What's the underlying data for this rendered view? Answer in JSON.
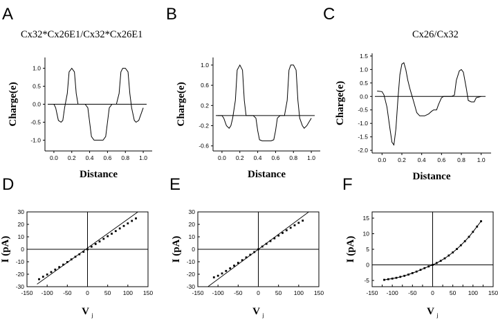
{
  "chart_data": [
    {
      "id": "A",
      "type": "line",
      "panel_letter": "A",
      "title": "Cx32*Cx26E1/Cx32*Cx26E1",
      "xlabel": "Distance",
      "ylabel": "Charge(e)",
      "xlim": [
        -0.1,
        1.1
      ],
      "ylim": [
        -1.3,
        1.3
      ],
      "xticks": [
        "0.0",
        "0.2",
        "0.4",
        "0.6",
        "0.8",
        "1.0"
      ],
      "yticks": [
        "-1.0",
        "-0.5",
        "0.0",
        "0.5",
        "1.0"
      ],
      "zero_line": true,
      "series": [
        {
          "x": [
            -0.05,
            0.0,
            0.02,
            0.05,
            0.08,
            0.1,
            0.12,
            0.15,
            0.17,
            0.2,
            0.23,
            0.25,
            0.27,
            0.3,
            0.32,
            0.35,
            0.38,
            0.4,
            0.42,
            0.45,
            0.5,
            0.55,
            0.58,
            0.6,
            0.62,
            0.65,
            0.68,
            0.7,
            0.73,
            0.75,
            0.77,
            0.8,
            0.83,
            0.85,
            0.87,
            0.9,
            0.92,
            0.95,
            1.0
          ],
          "y": [
            0,
            0,
            -0.1,
            -0.45,
            -0.5,
            -0.45,
            -0.1,
            0.3,
            0.9,
            1.0,
            0.9,
            0.3,
            0,
            0,
            0,
            0,
            -0.1,
            -0.5,
            -0.9,
            -1.0,
            -1.0,
            -1.0,
            -0.9,
            -0.5,
            -0.1,
            0,
            0,
            0,
            0.3,
            0.9,
            1.0,
            1.0,
            0.9,
            0.3,
            -0.1,
            -0.45,
            -0.5,
            -0.45,
            -0.1
          ]
        }
      ]
    },
    {
      "id": "B",
      "type": "line",
      "panel_letter": "B",
      "title": "",
      "xlabel": "Distance",
      "ylabel": "Charge(e)",
      "xlim": [
        -0.1,
        1.1
      ],
      "ylim": [
        -0.7,
        1.15
      ],
      "xticks": [
        "0.0",
        "0.2",
        "0.4",
        "0.6",
        "0.8",
        "1.0"
      ],
      "yticks": [
        "-0.6",
        "-0.2",
        "0.2",
        "0.6",
        "1.0"
      ],
      "zero_line": true,
      "series": [
        {
          "x": [
            -0.05,
            0.0,
            0.02,
            0.05,
            0.08,
            0.1,
            0.12,
            0.15,
            0.17,
            0.2,
            0.23,
            0.25,
            0.27,
            0.3,
            0.32,
            0.35,
            0.38,
            0.4,
            0.42,
            0.45,
            0.5,
            0.55,
            0.58,
            0.6,
            0.62,
            0.65,
            0.68,
            0.7,
            0.73,
            0.75,
            0.77,
            0.8,
            0.83,
            0.85,
            0.87,
            0.9,
            0.92,
            0.95,
            1.0
          ],
          "y": [
            0,
            0,
            -0.05,
            -0.2,
            -0.25,
            -0.2,
            -0.05,
            0.3,
            0.9,
            1.0,
            0.9,
            0.3,
            0,
            0,
            0,
            0,
            -0.05,
            -0.3,
            -0.48,
            -0.5,
            -0.5,
            -0.5,
            -0.48,
            -0.3,
            -0.05,
            0,
            0,
            0,
            0.3,
            0.9,
            1.0,
            1.0,
            0.9,
            0.3,
            -0.05,
            -0.2,
            -0.25,
            -0.2,
            -0.05
          ]
        }
      ]
    },
    {
      "id": "C",
      "type": "line",
      "panel_letter": "C",
      "title": "Cx26/Cx32",
      "xlabel": "Distance",
      "ylabel": "Charge(e)",
      "xlim": [
        -0.1,
        1.1
      ],
      "ylim": [
        -2.1,
        1.6
      ],
      "xticks": [
        "0.0",
        "0.2",
        "0.4",
        "0.6",
        "0.8",
        "1.0"
      ],
      "yticks": [
        "-2.0",
        "-1.5",
        "-1.0",
        "-0.5",
        "0.0",
        "0.5",
        "1.0",
        "1.5"
      ],
      "zero_line": true,
      "series": [
        {
          "x": [
            -0.05,
            0.0,
            0.02,
            0.05,
            0.08,
            0.1,
            0.12,
            0.14,
            0.16,
            0.18,
            0.2,
            0.22,
            0.24,
            0.26,
            0.28,
            0.3,
            0.32,
            0.35,
            0.38,
            0.4,
            0.43,
            0.47,
            0.5,
            0.52,
            0.55,
            0.57,
            0.6,
            0.62,
            0.65,
            0.7,
            0.73,
            0.75,
            0.78,
            0.8,
            0.82,
            0.85,
            0.87,
            0.9,
            0.93,
            0.95,
            0.98,
            1.0
          ],
          "y": [
            0.2,
            0.18,
            0.05,
            -0.4,
            -1.2,
            -1.7,
            -1.8,
            -1.2,
            -0.1,
            0.8,
            1.2,
            1.25,
            1.0,
            0.6,
            0.3,
            0.05,
            -0.2,
            -0.6,
            -0.72,
            -0.72,
            -0.72,
            -0.65,
            -0.55,
            -0.5,
            -0.5,
            -0.3,
            -0.05,
            0,
            0,
            0,
            0.05,
            0.6,
            0.95,
            1.0,
            0.9,
            0.3,
            -0.15,
            -0.2,
            -0.2,
            -0.05,
            -0.02,
            0
          ]
        }
      ]
    },
    {
      "id": "D",
      "type": "scatter",
      "panel_letter": "D",
      "xlabel": "V",
      "xlabel_sub": "j",
      "ylabel": "I (pA)",
      "xlim": [
        -150,
        150
      ],
      "ylim": [
        -30,
        30
      ],
      "xticks": [
        "-150",
        "-100",
        "-50",
        "0",
        "50",
        "100",
        "150"
      ],
      "yticks": [
        "-30",
        "-20",
        "-10",
        "0",
        "10",
        "20",
        "30"
      ],
      "zero_line": true,
      "points": {
        "x": [
          -120,
          -110,
          -100,
          -90,
          -80,
          -70,
          -60,
          -50,
          -40,
          -30,
          -20,
          -10,
          0,
          10,
          20,
          30,
          40,
          50,
          60,
          70,
          80,
          90,
          100,
          110,
          120
        ],
        "y": [
          -24,
          -22,
          -20.2,
          -18.3,
          -16.3,
          -14.3,
          -12.3,
          -10.2,
          -8.1,
          -6.0,
          -4.0,
          -2.0,
          0,
          2.1,
          4.2,
          6.3,
          8.4,
          10.5,
          12.5,
          14.6,
          16.7,
          18.7,
          20.8,
          22.8,
          24.8
        ]
      },
      "fit_line": {
        "x": [
          -125,
          125
        ],
        "y": [
          -28,
          30
        ]
      }
    },
    {
      "id": "E",
      "type": "scatter",
      "panel_letter": "E",
      "xlabel": "V",
      "xlabel_sub": "j",
      "ylabel": "I (pA)",
      "xlim": [
        -150,
        150
      ],
      "ylim": [
        -30,
        30
      ],
      "xticks": [
        "-150",
        "-100",
        "-50",
        "0",
        "50",
        "100",
        "150"
      ],
      "yticks": [
        "-30",
        "-20",
        "-10",
        "0",
        "10",
        "20",
        "30"
      ],
      "zero_line": true,
      "points": {
        "x": [
          -110,
          -100,
          -90,
          -80,
          -70,
          -60,
          -50,
          -40,
          -30,
          -20,
          -10,
          0,
          10,
          20,
          30,
          40,
          50,
          60,
          70,
          80,
          90,
          100,
          110
        ],
        "y": [
          -22.5,
          -21.2,
          -19.4,
          -17.4,
          -15.3,
          -13.1,
          -10.9,
          -8.7,
          -6.5,
          -4.4,
          -2.2,
          0,
          2.2,
          4.4,
          6.6,
          8.8,
          11.0,
          13.1,
          15.2,
          17.3,
          19.3,
          21.2,
          23.0
        ]
      },
      "fit_line": {
        "x": [
          -125,
          125
        ],
        "y": [
          -30,
          30
        ]
      }
    },
    {
      "id": "F",
      "type": "scatter",
      "panel_letter": "F",
      "xlabel": "V",
      "xlabel_sub": "j",
      "ylabel": "I (pA)",
      "xlim": [
        -150,
        150
      ],
      "ylim": [
        -7,
        17
      ],
      "xticks": [
        "-150",
        "-125",
        "-100",
        "-75",
        "-50",
        "-25",
        "0",
        "25",
        "50",
        "75",
        "100",
        "125",
        "150"
      ],
      "yticks": [
        "-5",
        "0",
        "5",
        "10",
        "15"
      ],
      "zero_line": true,
      "points": {
        "x": [
          -120,
          -110,
          -100,
          -90,
          -80,
          -70,
          -60,
          -50,
          -40,
          -30,
          -20,
          -10,
          0,
          10,
          20,
          30,
          40,
          50,
          60,
          70,
          80,
          90,
          100,
          110,
          120
        ],
        "y": [
          -4.8,
          -4.6,
          -4.4,
          -4.15,
          -3.85,
          -3.5,
          -3.1,
          -2.65,
          -2.15,
          -1.6,
          -1.05,
          -0.5,
          0,
          0.6,
          1.3,
          2.1,
          3.0,
          4.0,
          5.1,
          6.3,
          7.6,
          9.0,
          10.6,
          12.3,
          14.0
        ]
      },
      "fit_line": null
    }
  ]
}
